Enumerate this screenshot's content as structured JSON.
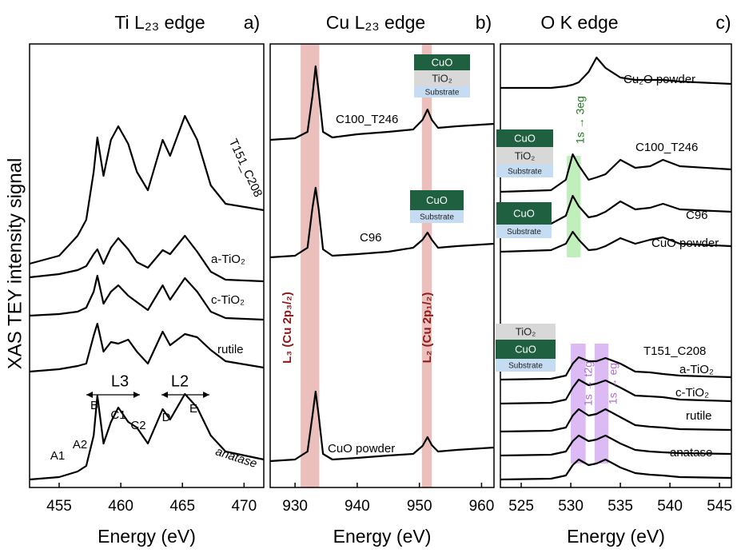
{
  "chart_data": [
    {
      "type": "line",
      "title": "Ti L₂₃ edge",
      "panel_label": "a)",
      "xlabel": "Energy (eV)",
      "ylabel": "XAS TEY intensity signal",
      "xlim": [
        452.6,
        471.6
      ],
      "xticks": [
        455,
        460,
        465,
        470
      ],
      "ylim": [
        0,
        555
      ],
      "x": [
        452.6,
        455,
        456.5,
        457.2,
        457.8,
        458.1,
        458.6,
        459.2,
        459.8,
        460.6,
        461.3,
        462.2,
        463.4,
        464.0,
        465.2,
        466.2,
        467.3,
        468.5,
        471.6
      ],
      "series": [
        {
          "name": "T151_C208",
          "color": "#000000",
          "values": [
            280,
            290,
            315,
            335,
            395,
            438,
            390,
            435,
            452,
            430,
            395,
            372,
            435,
            415,
            465,
            435,
            378,
            355,
            347
          ]
        },
        {
          "name": "a-TiO₂",
          "color": "#000000",
          "values": [
            263,
            267,
            272,
            277,
            292,
            298,
            280,
            300,
            312,
            298,
            282,
            275,
            297,
            292,
            315,
            295,
            270,
            260,
            258
          ]
        },
        {
          "name": "c-TiO₂",
          "color": "#000000",
          "values": [
            215,
            217,
            220,
            225,
            245,
            265,
            230,
            245,
            253,
            240,
            232,
            222,
            253,
            235,
            262,
            245,
            220,
            212,
            210
          ]
        },
        {
          "name": "rutile",
          "color": "#000000",
          "values": [
            145,
            148,
            152,
            155,
            190,
            205,
            170,
            182,
            180,
            185,
            170,
            155,
            195,
            178,
            192,
            188,
            172,
            158,
            150
          ]
        },
        {
          "name": "anatase",
          "color": "#000000",
          "values": [
            10,
            13,
            20,
            27,
            65,
            115,
            55,
            82,
            100,
            82,
            75,
            55,
            98,
            85,
            117,
            100,
            65,
            45,
            35
          ]
        }
      ],
      "annotations": [
        "L3",
        "L2",
        "B",
        "C1",
        "C2",
        "D",
        "E",
        "A1",
        "A2"
      ]
    },
    {
      "type": "line",
      "title": "Cu L₂₃ edge",
      "panel_label": "b)",
      "xlabel": "Energy (eV)",
      "xlim": [
        926,
        962
      ],
      "xticks": [
        930,
        940,
        950,
        960
      ],
      "ylim": [
        0,
        555
      ],
      "x": [
        926,
        930,
        932,
        932.8,
        933.3,
        933.8,
        934.5,
        936,
        940,
        945,
        949,
        950.5,
        951.3,
        952,
        953,
        956,
        962
      ],
      "series": [
        {
          "name": "C100_T246",
          "color": "#000000",
          "values": [
            435,
            437,
            445,
            490,
            527,
            495,
            445,
            438,
            442,
            445,
            448,
            460,
            473,
            460,
            450,
            452,
            455
          ]
        },
        {
          "name": "C96",
          "color": "#000000",
          "values": [
            288,
            290,
            300,
            350,
            375,
            348,
            298,
            290,
            292,
            295,
            300,
            310,
            319,
            310,
            300,
            302,
            305
          ]
        },
        {
          "name": "CuO powder",
          "color": "#000000",
          "values": [
            33,
            35,
            45,
            90,
            120,
            90,
            42,
            35,
            37,
            40,
            42,
            52,
            63,
            53,
            45,
            47,
            50
          ]
        }
      ],
      "bands": [
        {
          "x": [
            930.9,
            933.9
          ],
          "color": "#e8b4b0"
        },
        {
          "x": [
            950.4,
            952.0
          ],
          "color": "#e8b4b0"
        }
      ],
      "annotations": [
        "L₃ (Cu 2p₃/₂)",
        "L₂ (Cu 2p₁/₂)"
      ],
      "insets": [
        [
          "CuO",
          "TiO₂",
          "Substrate"
        ],
        [
          "CuO",
          "Substrate"
        ]
      ]
    },
    {
      "type": "line",
      "title": "O K edge",
      "panel_label": "c)",
      "xlabel": "Energy (eV)",
      "xlim": [
        522.9,
        546.2
      ],
      "xticks": [
        525,
        530,
        535,
        540,
        545
      ],
      "ylim": [
        0,
        555
      ],
      "x": [
        522.9,
        528,
        529.5,
        530.2,
        530.8,
        531.8,
        532.6,
        533.5,
        535,
        536.5,
        538,
        539.3,
        541,
        546.2
      ],
      "series": [
        {
          "name": "Cu₂O powder",
          "color": "#000000",
          "values": [
            500,
            500,
            502,
            504,
            507,
            520,
            538,
            525,
            513,
            510,
            510,
            510,
            508,
            505
          ]
        },
        {
          "name": "C100_T246",
          "color": "#000000",
          "values": [
            370,
            372,
            385,
            417,
            403,
            385,
            388,
            392,
            410,
            400,
            402,
            410,
            402,
            398
          ]
        },
        {
          "name": "C96",
          "color": "#000000",
          "values": [
            328,
            330,
            340,
            365,
            352,
            338,
            340,
            345,
            358,
            348,
            350,
            355,
            348,
            345
          ]
        },
        {
          "name": "CuO powder",
          "color": "#000000",
          "values": [
            295,
            297,
            305,
            320,
            310,
            297,
            298,
            302,
            312,
            305,
            310,
            313,
            305,
            302
          ]
        },
        {
          "name": "T151_C208",
          "color": "#000000",
          "values": [
            135,
            136,
            140,
            155,
            163,
            158,
            158,
            162,
            155,
            145,
            144,
            142,
            140,
            138
          ]
        },
        {
          "name": "a-TiO₂",
          "color": "#000000",
          "values": [
            105,
            106,
            110,
            125,
            135,
            128,
            130,
            134,
            125,
            115,
            114,
            113,
            110,
            108
          ]
        },
        {
          "name": "c-TiO₂",
          "color": "#000000",
          "values": [
            70,
            71,
            75,
            90,
            98,
            90,
            92,
            98,
            88,
            78,
            76,
            75,
            73,
            72
          ]
        },
        {
          "name": "rutile",
          "color": "#000000",
          "values": [
            40,
            41,
            45,
            58,
            65,
            58,
            60,
            65,
            55,
            47,
            45,
            44,
            43,
            42
          ]
        },
        {
          "name": "anatase",
          "color": "#000000",
          "values": [
            10,
            11,
            15,
            28,
            35,
            28,
            30,
            35,
            25,
            18,
            16,
            15,
            13,
            12
          ]
        }
      ],
      "bands": [
        {
          "x": [
            529.6,
            531.0
          ],
          "y": [
            288,
            415
          ],
          "color": "#b6ecb0"
        },
        {
          "x": [
            530.0,
            531.5
          ],
          "y": [
            30,
            180
          ],
          "color": "#d6aef2"
        },
        {
          "x": [
            532.4,
            533.8
          ],
          "y": [
            30,
            180
          ],
          "color": "#d6aef2"
        }
      ],
      "annotations": [
        "1s → 3eg",
        "1s → t2g",
        "1s → eg"
      ],
      "insets": [
        [
          "CuO",
          "TiO₂",
          "Substrate"
        ],
        [
          "CuO",
          "Substrate"
        ],
        [
          "TiO₂",
          "CuO",
          "Substrate"
        ]
      ]
    }
  ]
}
